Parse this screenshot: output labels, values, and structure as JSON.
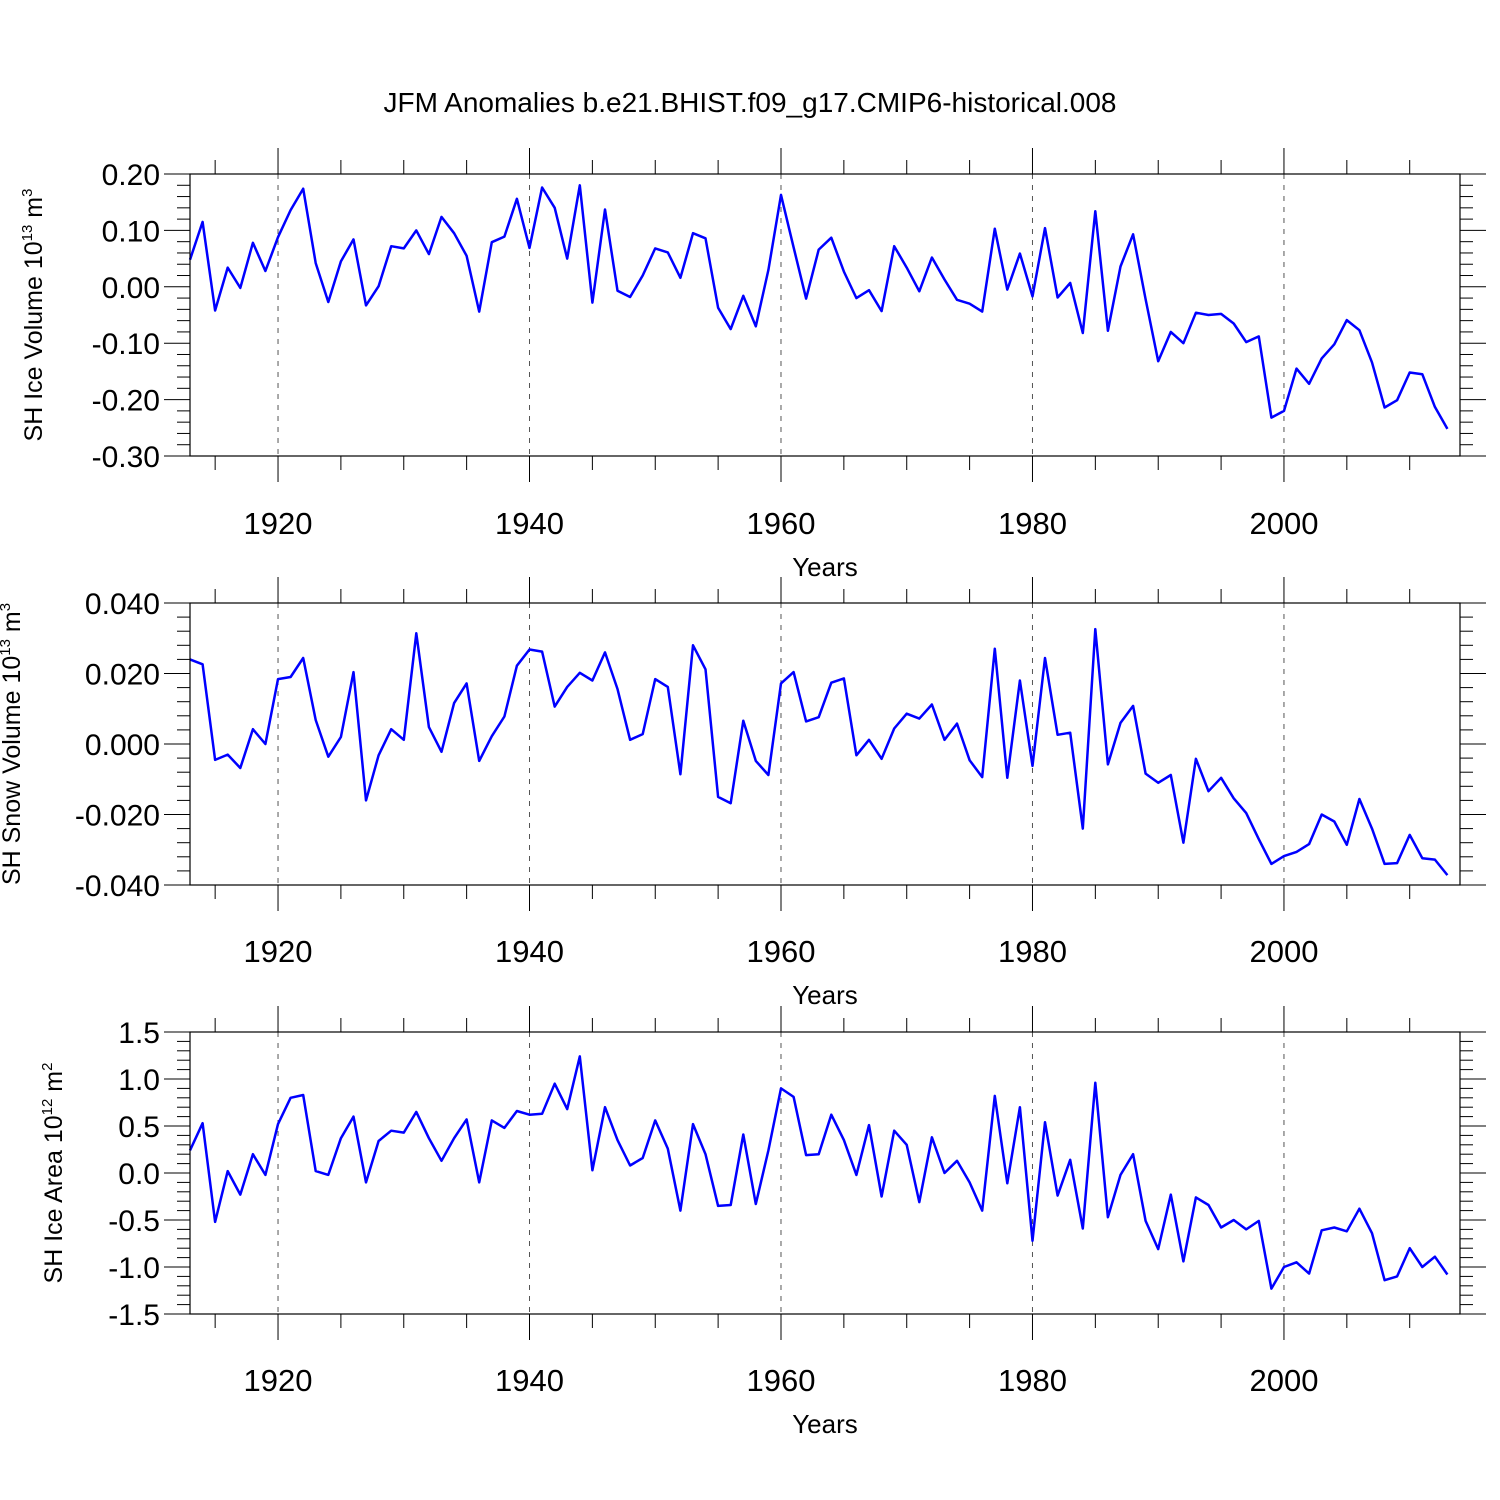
{
  "figure_title": "JFM Anomalies b.e21.BHIST.f09_g17.CMIP6-historical.008",
  "colors": {
    "line": "#0000ff",
    "axes": "#000000",
    "grid": "#555555",
    "background": "#ffffff"
  },
  "chart_data": [
    {
      "type": "line",
      "ylabel": "SH Ice Volume 10",
      "ylabel_exp": "13",
      "ylabel_unit": " m",
      "ylabel_unit_exp": "3",
      "xlabel": "Years",
      "xlim": [
        1913,
        2014
      ],
      "ylim": [
        -0.3,
        0.2
      ],
      "yticks": [
        "0.20",
        "0.10",
        "0.00",
        "-0.10",
        "-0.20",
        "-0.30"
      ],
      "yticks_values": [
        0.2,
        0.1,
        0.0,
        -0.1,
        -0.2,
        -0.3
      ],
      "xticks": [
        "1920",
        "1940",
        "1960",
        "1980",
        "2000"
      ],
      "xticks_values": [
        1920,
        1940,
        1960,
        1980,
        2000
      ],
      "grid": "vertical dashed at major x ticks",
      "x_start": 1913,
      "values": [
        0.048,
        0.115,
        -0.042,
        0.034,
        -0.002,
        0.078,
        0.028,
        0.088,
        0.136,
        0.174,
        0.042,
        -0.027,
        0.045,
        0.084,
        -0.033,
        0.001,
        0.072,
        0.068,
        0.1,
        0.058,
        0.124,
        0.095,
        0.055,
        -0.044,
        0.079,
        0.089,
        0.156,
        0.069,
        0.176,
        0.14,
        0.05,
        0.18,
        -0.028,
        0.137,
        -0.007,
        -0.018,
        0.02,
        0.068,
        0.061,
        0.016,
        0.095,
        0.086,
        -0.037,
        -0.075,
        -0.016,
        -0.07,
        0.03,
        0.163,
        0.07,
        -0.021,
        0.066,
        0.087,
        0.027,
        -0.02,
        -0.006,
        -0.043,
        0.072,
        0.034,
        -0.008,
        0.052,
        0.013,
        -0.023,
        -0.03,
        -0.044,
        0.103,
        -0.005,
        0.059,
        -0.017,
        0.104,
        -0.019,
        0.007,
        -0.082,
        0.134,
        -0.078,
        0.036,
        0.093,
        -0.022,
        -0.132,
        -0.08,
        -0.1,
        -0.046,
        -0.05,
        -0.048,
        -0.065,
        -0.098,
        -0.088,
        -0.232,
        -0.22,
        -0.145,
        -0.172,
        -0.127,
        -0.102,
        -0.059,
        -0.077,
        -0.134,
        -0.214,
        -0.201,
        -0.152,
        -0.155,
        -0.213,
        -0.252
      ]
    },
    {
      "type": "line",
      "ylabel": "SH Snow Volume 10",
      "ylabel_exp": "13",
      "ylabel_unit": " m",
      "ylabel_unit_exp": "3",
      "xlabel": "Years",
      "xlim": [
        1913,
        2014
      ],
      "ylim": [
        -0.04,
        0.04
      ],
      "yticks": [
        "0.040",
        "0.020",
        "0.000",
        "-0.020",
        "-0.040"
      ],
      "yticks_values": [
        0.04,
        0.02,
        0.0,
        -0.02,
        -0.04
      ],
      "xticks": [
        "1920",
        "1940",
        "1960",
        "1980",
        "2000"
      ],
      "xticks_values": [
        1920,
        1940,
        1960,
        1980,
        2000
      ],
      "grid": "vertical dashed at major x ticks",
      "x_start": 1913,
      "values": [
        0.024,
        0.0226,
        -0.0045,
        -0.003,
        -0.0068,
        0.0042,
        0.0,
        0.0184,
        0.019,
        0.0244,
        0.0068,
        -0.0036,
        0.002,
        0.0204,
        -0.016,
        -0.0032,
        0.0042,
        0.0012,
        0.0314,
        0.0048,
        -0.0022,
        0.0116,
        0.0172,
        -0.0048,
        0.0022,
        0.0078,
        0.0222,
        0.0268,
        0.0262,
        0.0106,
        0.0162,
        0.0202,
        0.018,
        0.026,
        0.0156,
        0.0012,
        0.0028,
        0.0184,
        0.0162,
        -0.0086,
        0.028,
        0.0212,
        -0.015,
        -0.0168,
        0.0066,
        -0.0048,
        -0.0088,
        0.0172,
        0.0204,
        0.0064,
        0.0076,
        0.0174,
        0.0186,
        -0.0032,
        0.0012,
        -0.0042,
        0.0044,
        0.0086,
        0.0072,
        0.0112,
        0.0012,
        0.0058,
        -0.0046,
        -0.0094,
        0.027,
        -0.0096,
        0.018,
        -0.0062,
        0.0244,
        0.0026,
        0.0032,
        -0.024,
        0.0326,
        -0.0058,
        0.006,
        0.0108,
        -0.0084,
        -0.011,
        -0.0088,
        -0.028,
        -0.0042,
        -0.0134,
        -0.0096,
        -0.0154,
        -0.0196,
        -0.027,
        -0.034,
        -0.0318,
        -0.0306,
        -0.0284,
        -0.02,
        -0.022,
        -0.0286,
        -0.0156,
        -0.024,
        -0.034,
        -0.0338,
        -0.0258,
        -0.0324,
        -0.0328,
        -0.0372
      ]
    },
    {
      "type": "line",
      "ylabel": "SH Ice Area 10",
      "ylabel_exp": "12",
      "ylabel_unit": " m",
      "ylabel_unit_exp": "2",
      "xlabel": "Years",
      "xlim": [
        1913,
        2014
      ],
      "ylim": [
        -1.5,
        1.5
      ],
      "yticks": [
        "1.5",
        "1.0",
        "0.5",
        "0.0",
        "-0.5",
        "-1.0",
        "-1.5"
      ],
      "yticks_values": [
        1.5,
        1.0,
        0.5,
        0.0,
        -0.5,
        -1.0,
        -1.5
      ],
      "xticks": [
        "1920",
        "1940",
        "1960",
        "1980",
        "2000"
      ],
      "xticks_values": [
        1920,
        1940,
        1960,
        1980,
        2000
      ],
      "grid": "vertical dashed at major x ticks",
      "x_start": 1913,
      "values": [
        0.24,
        0.53,
        -0.52,
        0.02,
        -0.23,
        0.2,
        -0.02,
        0.52,
        0.8,
        0.83,
        0.02,
        -0.02,
        0.37,
        0.6,
        -0.1,
        0.34,
        0.45,
        0.43,
        0.65,
        0.37,
        0.13,
        0.37,
        0.57,
        -0.1,
        0.56,
        0.48,
        0.66,
        0.62,
        0.63,
        0.95,
        0.68,
        1.24,
        0.03,
        0.7,
        0.35,
        0.08,
        0.16,
        0.56,
        0.26,
        -0.4,
        0.52,
        0.2,
        -0.35,
        -0.34,
        0.41,
        -0.33,
        0.24,
        0.9,
        0.81,
        0.19,
        0.2,
        0.62,
        0.35,
        -0.02,
        0.51,
        -0.25,
        0.45,
        0.3,
        -0.31,
        0.38,
        0.0,
        0.13,
        -0.1,
        -0.4,
        0.82,
        -0.11,
        0.7,
        -0.72,
        0.54,
        -0.24,
        0.14,
        -0.59,
        0.96,
        -0.47,
        -0.02,
        0.2,
        -0.51,
        -0.81,
        -0.23,
        -0.94,
        -0.26,
        -0.34,
        -0.58,
        -0.5,
        -0.6,
        -0.51,
        -1.23,
        -1.0,
        -0.95,
        -1.07,
        -0.61,
        -0.58,
        -0.62,
        -0.38,
        -0.64,
        -1.14,
        -1.1,
        -0.8,
        -1.0,
        -0.89,
        -1.08
      ]
    }
  ]
}
